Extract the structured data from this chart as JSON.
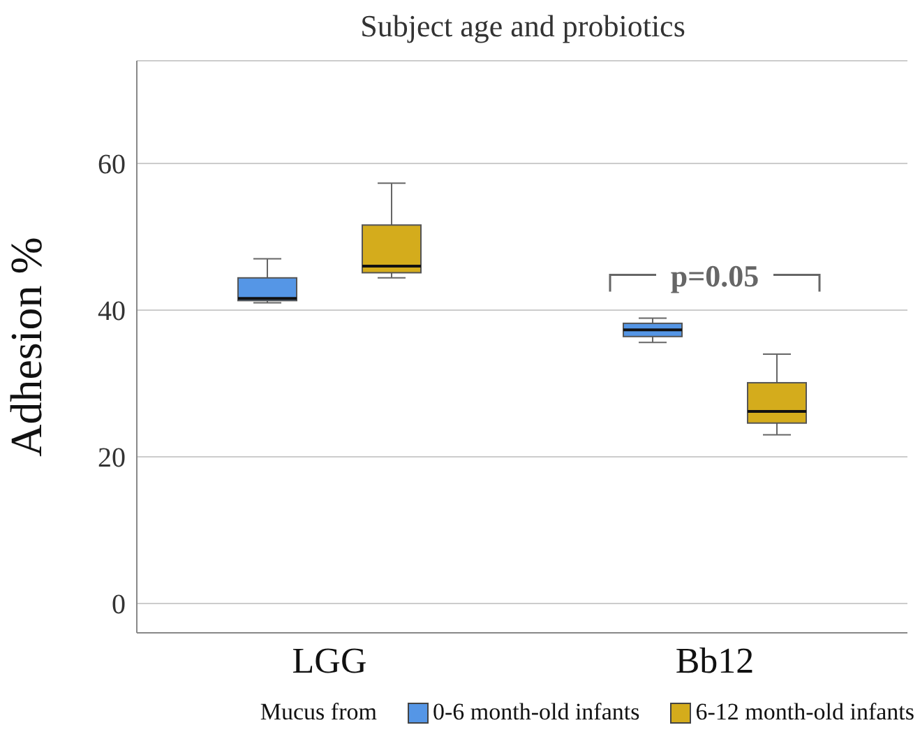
{
  "chart_data": {
    "type": "box",
    "title": "Subject age and probiotics",
    "ylabel": "Adhesion %",
    "legend_title": "Mucus from",
    "categories": [
      "LGG",
      "Bb12"
    ],
    "series": [
      {
        "name": "0-6 month-old infants",
        "color": "#5596e6",
        "boxes": [
          {
            "low": 41.0,
            "q1": 41.3,
            "median": 41.6,
            "q3": 44.4,
            "high": 47.0
          },
          {
            "low": 35.6,
            "q1": 36.4,
            "median": 37.3,
            "q3": 38.2,
            "high": 38.9
          }
        ]
      },
      {
        "name": "6-12 month-old infants",
        "color": "#d4ac1c",
        "boxes": [
          {
            "low": 44.4,
            "q1": 45.1,
            "median": 46.0,
            "q3": 51.6,
            "high": 57.3
          },
          {
            "low": 23.0,
            "q1": 24.6,
            "median": 26.2,
            "q3": 30.1,
            "high": 34.0
          }
        ]
      }
    ],
    "annotations": [
      "p=0.05"
    ],
    "ylim": [
      -4,
      74
    ],
    "yticks": [
      0,
      20,
      40,
      60
    ],
    "grid": "y",
    "legend": "bottom"
  }
}
